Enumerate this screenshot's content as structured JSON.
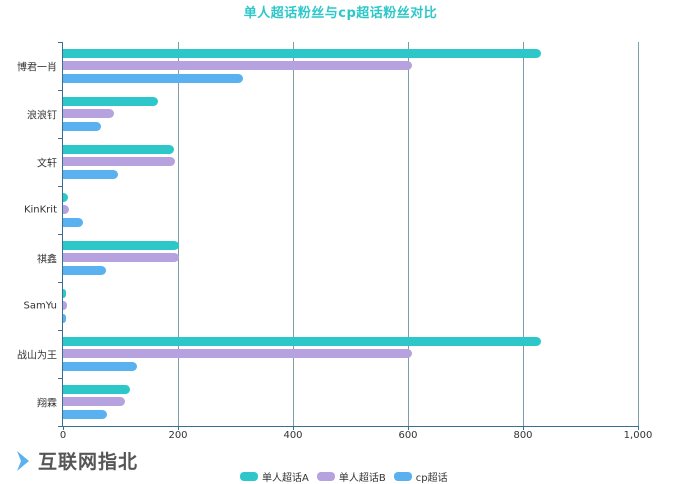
{
  "chart_data": {
    "type": "bar",
    "orientation": "horizontal",
    "title": "单人超话粉丝与cp超话粉丝对比",
    "categories": [
      "博君一肖",
      "浪浪钉",
      "文轩",
      "KinKrit",
      "祺鑫",
      "SamYu",
      "战山为王",
      "翔霖"
    ],
    "series": [
      {
        "name": "单人超话A",
        "color": "#2ec7c9",
        "values": [
          831,
          165,
          193,
          9,
          202,
          2,
          831,
          117
        ]
      },
      {
        "name": "单人超话B",
        "color": "#b6a2de",
        "values": [
          607,
          88,
          195,
          10,
          201,
          7,
          607,
          108
        ]
      },
      {
        "name": "cp超话",
        "color": "#5ab1ef",
        "values": [
          313,
          66,
          96,
          35,
          75,
          5,
          129,
          76
        ]
      }
    ],
    "xlabel": "",
    "ylabel": "",
    "xlim": [
      0,
      1000
    ],
    "xticks": [
      "0",
      "200",
      "400",
      "600",
      "800",
      "1,000"
    ],
    "grid": true,
    "legend_position": "bottom"
  },
  "watermark": {
    "text": "互联网指北",
    "icon": "chevron-right-icon",
    "icon_color": "#5ab1ef"
  }
}
